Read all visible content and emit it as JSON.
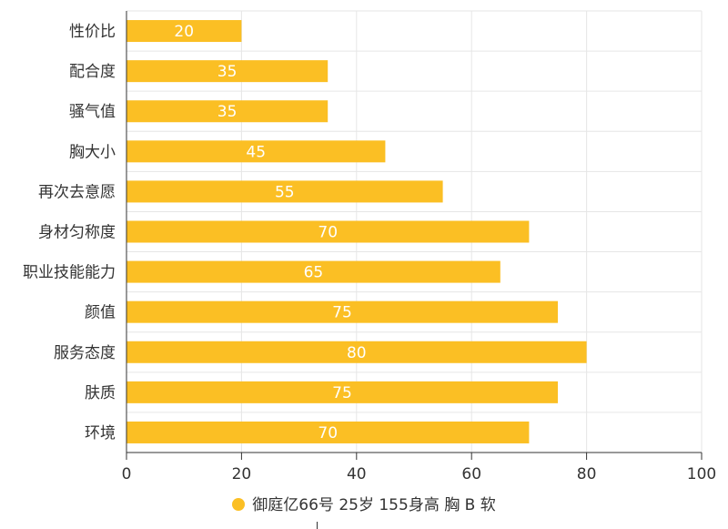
{
  "chart_data": {
    "type": "bar",
    "orientation": "horizontal",
    "categories": [
      "性价比",
      "配合度",
      "骚气值",
      "胸大小",
      "再次去意愿",
      "身材匀称度",
      "职业技能能力",
      "颜值",
      "服务态度",
      "肤质",
      "环境"
    ],
    "series": [
      {
        "name": "御庭亿66号 25岁  155身高  胸 B  软",
        "values": [
          20,
          35,
          35,
          45,
          55,
          70,
          65,
          75,
          80,
          75,
          70
        ],
        "color": "#fbbf24"
      }
    ],
    "xlim": [
      0,
      100
    ],
    "xticks": [
      0,
      20,
      40,
      60,
      80,
      100
    ],
    "grid": true,
    "legend_position": "bottom"
  }
}
